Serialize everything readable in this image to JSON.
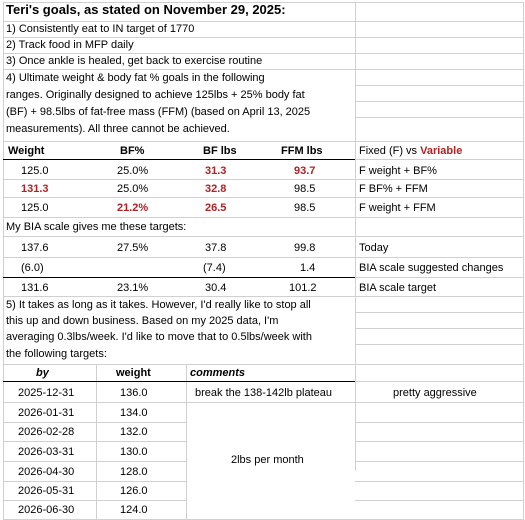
{
  "title": "Teri's goals, as stated on November 29, 2025:",
  "goals": [
    "1) Consistently eat to IN target of 1770",
    "2) Track food in MFP daily",
    "3) Once ankle is healed, get back to exercise routine",
    "4) Ultimate weight & body fat % goals in the following",
    "ranges. Originally designed to achieve 125lbs + 25% body fat",
    "(BF) + 98.5lbs of fat-free mass (FFM) (based on April 13, 2025",
    "measurements). All three cannot be achieved."
  ],
  "table1": {
    "headers": [
      "Weight",
      "BF%",
      "BF lbs",
      "FFM lbs",
      "Fixed (F) vs ",
      "Variable"
    ],
    "rows": [
      {
        "weight": "125.0",
        "bfpct": "25.0%",
        "bflbs": "31.3",
        "ffm": "93.7",
        "note": "F weight + BF%"
      },
      {
        "weight": "131.3",
        "bfpct": "25.0%",
        "bflbs": "32.8",
        "ffm": "98.5",
        "note": "F BF% + FFM"
      },
      {
        "weight": "125.0",
        "bfpct": "21.2%",
        "bflbs": "26.5",
        "ffm": "98.5",
        "note": "F weight + FFM"
      }
    ]
  },
  "bia_intro": "My BIA scale gives me these targets:",
  "bia": {
    "rows": [
      {
        "weight": "137.6",
        "bfpct": "27.5%",
        "bflbs": "37.8",
        "ffm": "99.8",
        "note": "Today"
      },
      {
        "weight": "(6.0)",
        "bfpct": "",
        "bflbs": "(7.4)",
        "ffm": "1.4",
        "note": "BIA scale suggested changes"
      },
      {
        "weight": "131.6",
        "bfpct": "23.1%",
        "bflbs": "30.4",
        "ffm": "101.2",
        "note": "BIA scale target"
      }
    ]
  },
  "goal5": [
    "5) It takes as long as it takes. However, I'd really like to stop all",
    "this up and down business. Based on my 2025 data, I'm",
    "averaging 0.3lbs/week. I'd like to move that to 0.5lbs/week with",
    "the following targets:"
  ],
  "table2": {
    "headers": [
      "by",
      "weight",
      "comments"
    ],
    "rows": [
      {
        "date": "2025-12-31",
        "weight": "136.0"
      },
      {
        "date": "2026-01-31",
        "weight": "134.0"
      },
      {
        "date": "2026-02-28",
        "weight": "132.0"
      },
      {
        "date": "2026-03-31",
        "weight": "130.0"
      },
      {
        "date": "2026-04-30",
        "weight": "128.0"
      },
      {
        "date": "2026-05-31",
        "weight": "126.0"
      },
      {
        "date": "2026-06-30",
        "weight": "124.0"
      }
    ],
    "comment_plateau": "break the 138-142lb plateau",
    "comment_aggressive": "pretty aggressive",
    "comment_monthly": "2lbs per month"
  }
}
